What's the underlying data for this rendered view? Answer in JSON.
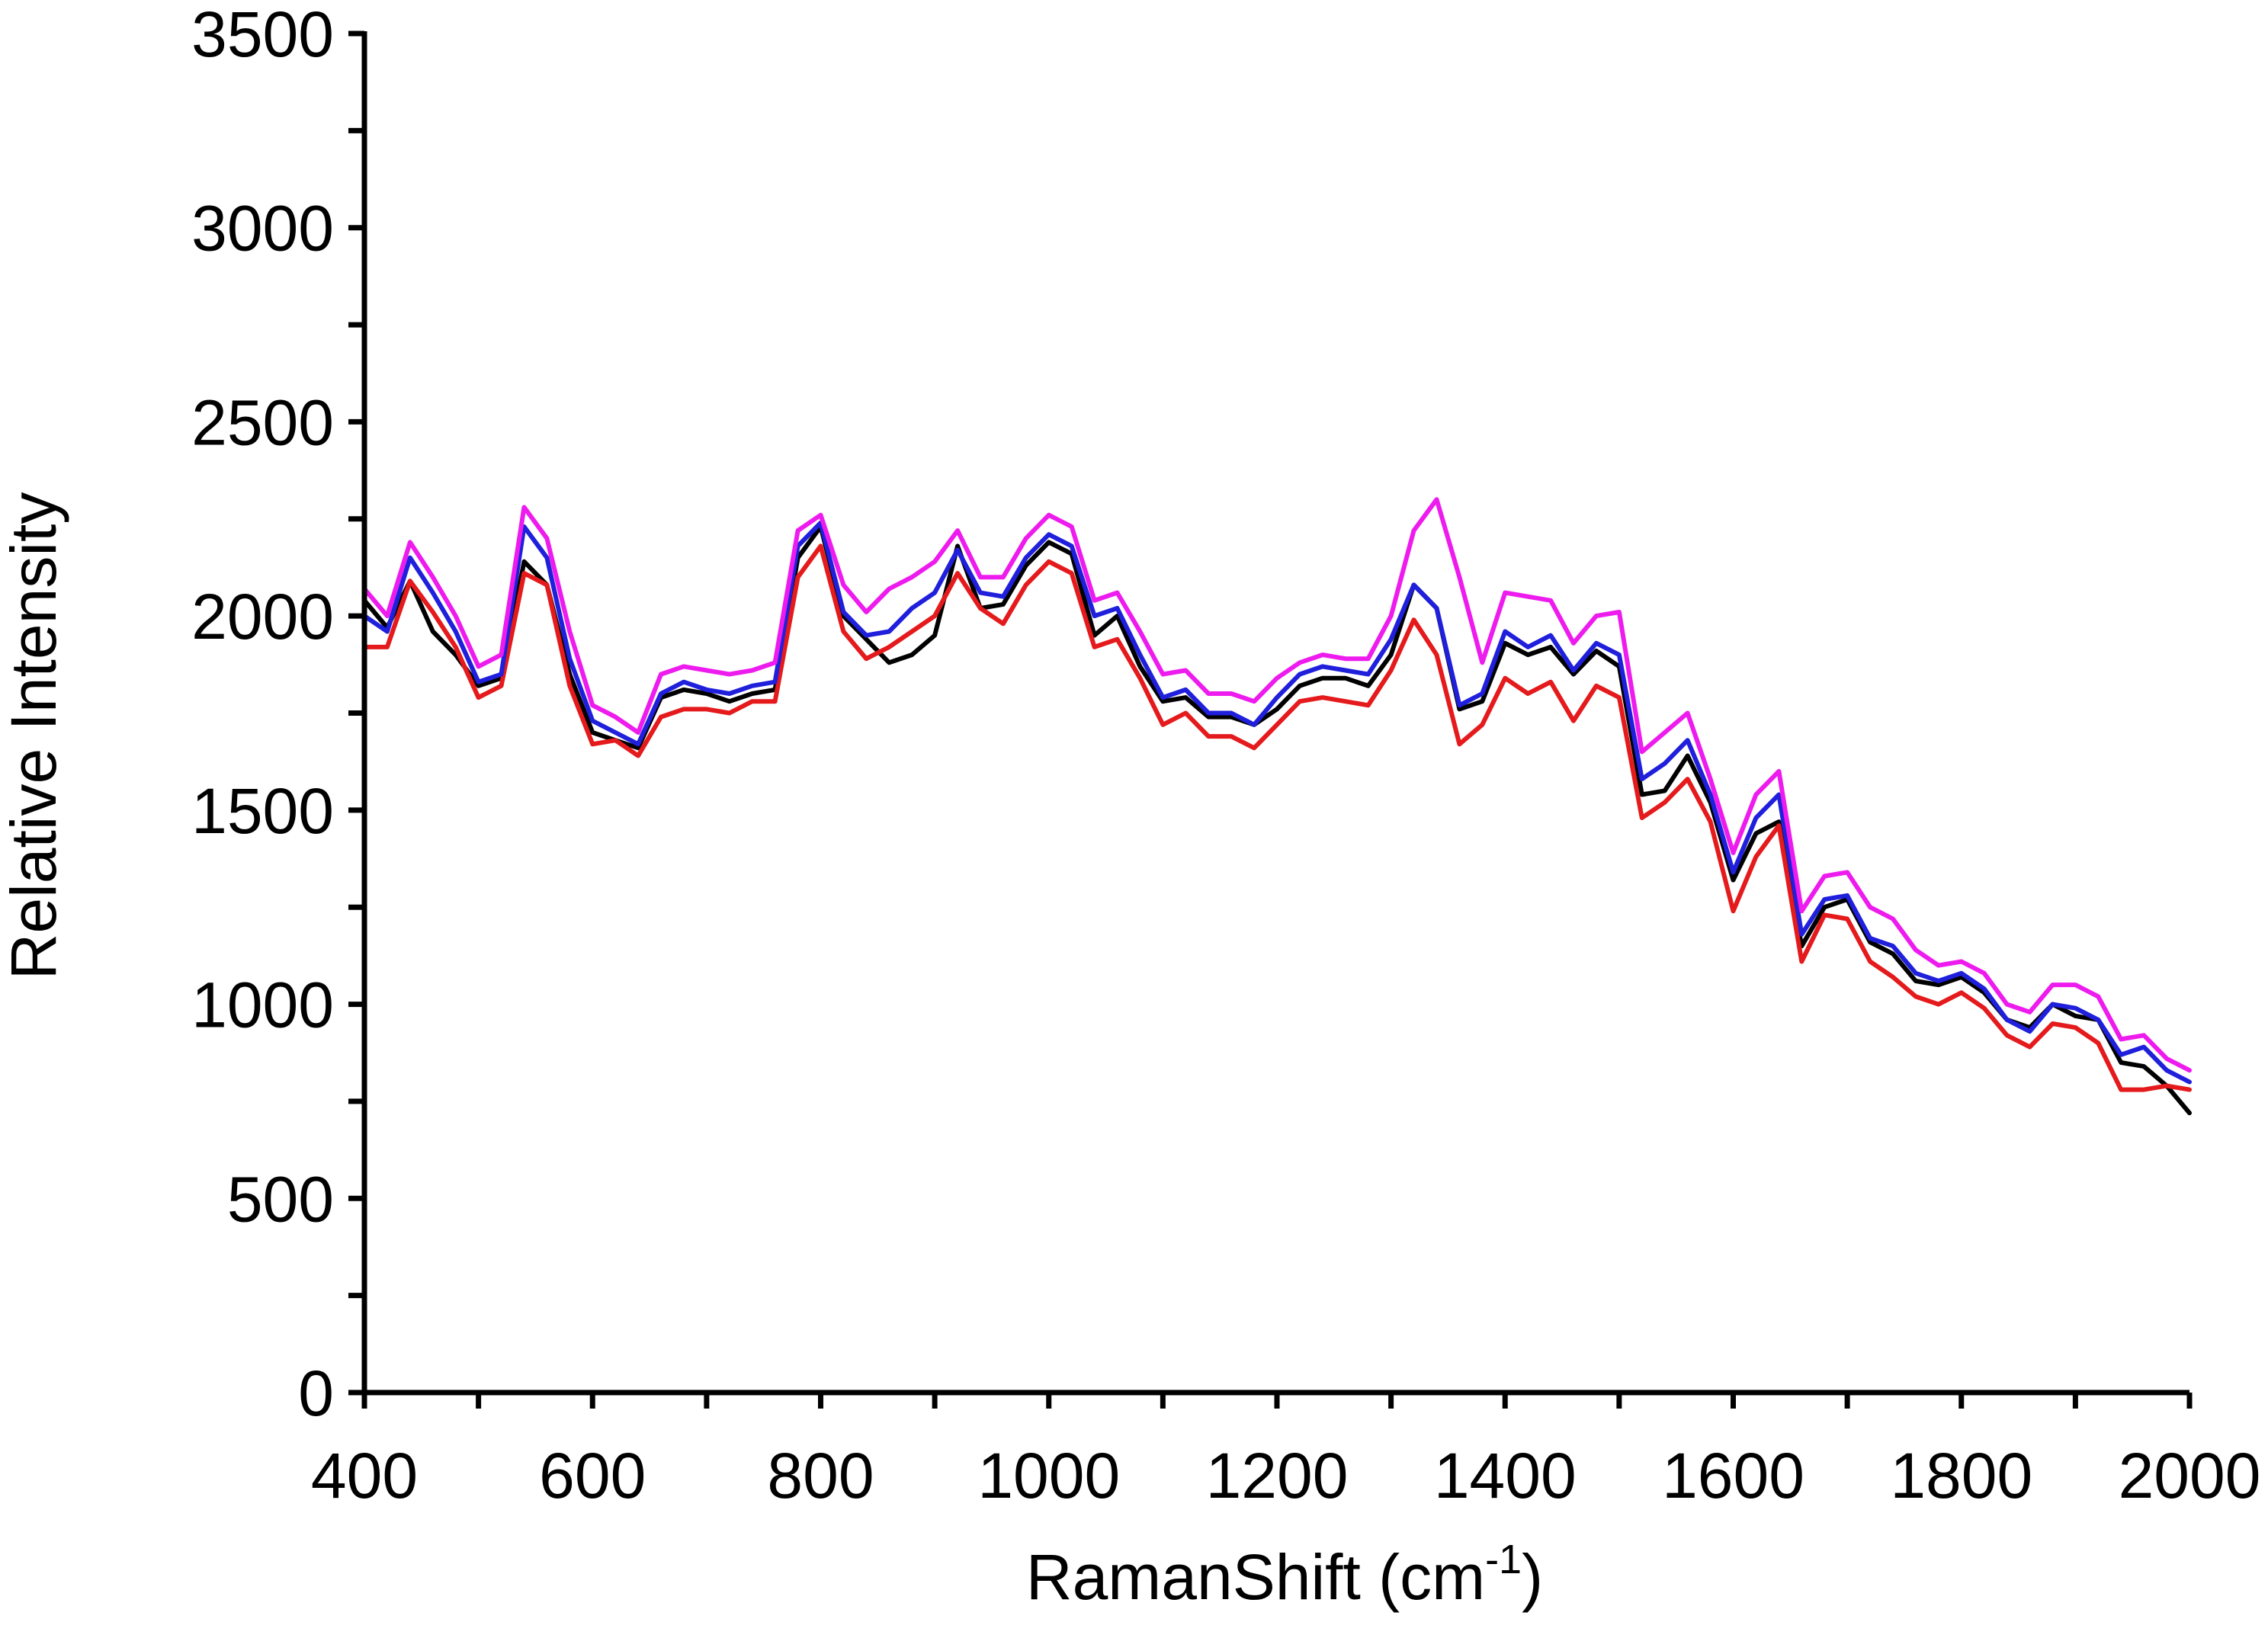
{
  "chart_data": {
    "type": "line",
    "xlabel": "RamanShift (cm",
    "xlabel_sup": "-1",
    "xlabel_close": ")",
    "ylabel": "Relative Intensity",
    "xlim": [
      400,
      2000
    ],
    "ylim": [
      0,
      3500
    ],
    "x_ticks": [
      400,
      600,
      800,
      1000,
      1200,
      1400,
      1600,
      1800,
      2000
    ],
    "y_ticks": [
      0,
      500,
      1000,
      1500,
      2000,
      2500,
      3000,
      3500
    ],
    "x_minor_step": 100,
    "y_minor_step": 250,
    "grid": false,
    "legend": "none",
    "series": [
      {
        "color": "#000000",
        "x": [
          400,
          420,
          440,
          460,
          480,
          500,
          520,
          540,
          560,
          580,
          600,
          620,
          640,
          660,
          680,
          700,
          720,
          740,
          760,
          780,
          800,
          820,
          840,
          860,
          880,
          900,
          920,
          940,
          960,
          980,
          1000,
          1020,
          1040,
          1060,
          1080,
          1100,
          1120,
          1140,
          1160,
          1180,
          1200,
          1220,
          1240,
          1260,
          1280,
          1300,
          1320,
          1340,
          1360,
          1380,
          1400,
          1420,
          1440,
          1460,
          1480,
          1500,
          1520,
          1540,
          1560,
          1580,
          1600,
          1620,
          1640,
          1660,
          1680,
          1700,
          1720,
          1740,
          1760,
          1780,
          1800,
          1820,
          1840,
          1860,
          1880,
          1900,
          1920,
          1940,
          1960,
          1980,
          2000
        ],
        "values": [
          2040,
          1970,
          2090,
          1960,
          1900,
          1820,
          1840,
          2140,
          2080,
          1850,
          1700,
          1680,
          1660,
          1790,
          1810,
          1800,
          1780,
          1800,
          1810,
          2150,
          2230,
          2000,
          1940,
          1880,
          1900,
          1950,
          2180,
          2020,
          2030,
          2130,
          2190,
          2160,
          1950,
          2000,
          1870,
          1780,
          1790,
          1740,
          1740,
          1720,
          1760,
          1820,
          1840,
          1840,
          1820,
          1900,
          2080,
          2020,
          1760,
          1780,
          1930,
          1900,
          1920,
          1850,
          1910,
          1870,
          1540,
          1550,
          1640,
          1520,
          1320,
          1440,
          1470,
          1150,
          1250,
          1270,
          1160,
          1130,
          1060,
          1050,
          1070,
          1030,
          960,
          940,
          1000,
          970,
          960,
          850,
          840,
          790,
          720
        ]
      },
      {
        "color": "#e41a1c",
        "x": [
          400,
          420,
          440,
          460,
          480,
          500,
          520,
          540,
          560,
          580,
          600,
          620,
          640,
          660,
          680,
          700,
          720,
          740,
          760,
          780,
          800,
          820,
          840,
          860,
          880,
          900,
          920,
          940,
          960,
          980,
          1000,
          1020,
          1040,
          1060,
          1080,
          1100,
          1120,
          1140,
          1160,
          1180,
          1200,
          1220,
          1240,
          1260,
          1280,
          1300,
          1320,
          1340,
          1360,
          1380,
          1400,
          1420,
          1440,
          1460,
          1480,
          1500,
          1520,
          1540,
          1560,
          1580,
          1600,
          1620,
          1640,
          1660,
          1680,
          1700,
          1720,
          1740,
          1760,
          1780,
          1800,
          1820,
          1840,
          1860,
          1880,
          1900,
          1920,
          1940,
          1960,
          1980,
          2000
        ],
        "values": [
          1920,
          1920,
          2090,
          2010,
          1920,
          1790,
          1820,
          2110,
          2080,
          1820,
          1670,
          1680,
          1640,
          1740,
          1760,
          1760,
          1750,
          1780,
          1780,
          2100,
          2180,
          1960,
          1890,
          1920,
          1960,
          2000,
          2110,
          2020,
          1980,
          2080,
          2140,
          2110,
          1920,
          1940,
          1840,
          1720,
          1750,
          1690,
          1690,
          1660,
          1720,
          1780,
          1790,
          1780,
          1770,
          1860,
          1990,
          1900,
          1670,
          1720,
          1840,
          1800,
          1830,
          1730,
          1820,
          1790,
          1480,
          1520,
          1580,
          1470,
          1240,
          1380,
          1460,
          1110,
          1230,
          1220,
          1110,
          1070,
          1020,
          1000,
          1030,
          990,
          920,
          890,
          950,
          940,
          900,
          780,
          780,
          790,
          780
        ]
      },
      {
        "color": "#1f1fdc",
        "x": [
          400,
          420,
          440,
          460,
          480,
          500,
          520,
          540,
          560,
          580,
          600,
          620,
          640,
          660,
          680,
          700,
          720,
          740,
          760,
          780,
          800,
          820,
          840,
          860,
          880,
          900,
          920,
          940,
          960,
          980,
          1000,
          1020,
          1040,
          1060,
          1080,
          1100,
          1120,
          1140,
          1160,
          1180,
          1200,
          1220,
          1240,
          1260,
          1280,
          1300,
          1320,
          1340,
          1360,
          1380,
          1400,
          1420,
          1440,
          1460,
          1480,
          1500,
          1520,
          1540,
          1560,
          1580,
          1600,
          1620,
          1640,
          1660,
          1680,
          1700,
          1720,
          1740,
          1760,
          1780,
          1800,
          1820,
          1840,
          1860,
          1880,
          1900,
          1920,
          1940,
          1960,
          1980,
          2000
        ],
        "values": [
          2000,
          1960,
          2150,
          2060,
          1960,
          1830,
          1850,
          2230,
          2150,
          1890,
          1730,
          1700,
          1670,
          1800,
          1830,
          1810,
          1800,
          1820,
          1830,
          2180,
          2240,
          2010,
          1950,
          1960,
          2020,
          2060,
          2170,
          2060,
          2050,
          2150,
          2210,
          2180,
          2000,
          2020,
          1900,
          1790,
          1810,
          1750,
          1750,
          1720,
          1790,
          1850,
          1870,
          1860,
          1850,
          1940,
          2080,
          2020,
          1770,
          1800,
          1960,
          1920,
          1950,
          1860,
          1930,
          1900,
          1580,
          1620,
          1680,
          1540,
          1340,
          1480,
          1540,
          1180,
          1270,
          1280,
          1170,
          1150,
          1080,
          1060,
          1080,
          1040,
          960,
          930,
          1000,
          990,
          960,
          870,
          890,
          830,
          800
        ]
      },
      {
        "color": "#ee1bee",
        "x": [
          400,
          420,
          440,
          460,
          480,
          500,
          520,
          540,
          560,
          580,
          600,
          620,
          640,
          660,
          680,
          700,
          720,
          740,
          760,
          780,
          800,
          820,
          840,
          860,
          880,
          900,
          920,
          940,
          960,
          980,
          1000,
          1020,
          1040,
          1060,
          1080,
          1100,
          1120,
          1140,
          1160,
          1180,
          1200,
          1220,
          1240,
          1260,
          1280,
          1300,
          1320,
          1340,
          1360,
          1380,
          1400,
          1420,
          1440,
          1460,
          1480,
          1500,
          1520,
          1540,
          1560,
          1580,
          1600,
          1620,
          1640,
          1660,
          1680,
          1700,
          1720,
          1740,
          1760,
          1780,
          1800,
          1820,
          1840,
          1860,
          1880,
          1900,
          1920,
          1940,
          1960,
          1980,
          2000
        ],
        "values": [
          2070,
          2000,
          2190,
          2100,
          2000,
          1870,
          1900,
          2280,
          2200,
          1960,
          1770,
          1740,
          1700,
          1850,
          1870,
          1860,
          1850,
          1860,
          1880,
          2220,
          2260,
          2080,
          2010,
          2070,
          2100,
          2140,
          2220,
          2100,
          2100,
          2200,
          2260,
          2230,
          2040,
          2060,
          1960,
          1850,
          1860,
          1800,
          1800,
          1780,
          1840,
          1880,
          1900,
          1890,
          1890,
          2000,
          2220,
          2300,
          2100,
          1880,
          2060,
          2050,
          2040,
          1930,
          2000,
          2010,
          1650,
          1700,
          1750,
          1580,
          1390,
          1540,
          1600,
          1240,
          1330,
          1340,
          1250,
          1220,
          1140,
          1100,
          1110,
          1080,
          1000,
          980,
          1050,
          1050,
          1020,
          910,
          920,
          860,
          830
        ]
      }
    ]
  }
}
